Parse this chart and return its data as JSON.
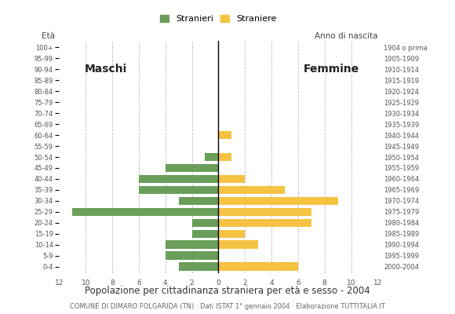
{
  "age_groups": [
    "0-4",
    "5-9",
    "10-14",
    "15-19",
    "20-24",
    "25-29",
    "30-34",
    "35-39",
    "40-44",
    "45-49",
    "50-54",
    "55-59",
    "60-64",
    "65-69",
    "70-74",
    "75-79",
    "80-84",
    "85-89",
    "90-94",
    "95-99",
    "100+"
  ],
  "birth_years": [
    "2000-2004",
    "1995-1999",
    "1990-1994",
    "1985-1989",
    "1980-1984",
    "1975-1979",
    "1970-1974",
    "1965-1969",
    "1960-1964",
    "1955-1959",
    "1950-1954",
    "1945-1949",
    "1940-1944",
    "1935-1939",
    "1930-1934",
    "1925-1929",
    "1920-1924",
    "1915-1919",
    "1910-1914",
    "1905-1909",
    "1904 o prima"
  ],
  "males": [
    3,
    4,
    4,
    2,
    2,
    11,
    3,
    6,
    6,
    4,
    1,
    0,
    0,
    0,
    0,
    0,
    0,
    0,
    0,
    0,
    0
  ],
  "females": [
    6,
    0,
    3,
    2,
    7,
    7,
    9,
    5,
    2,
    0,
    1,
    0,
    1,
    0,
    0,
    0,
    0,
    0,
    0,
    0,
    0
  ],
  "male_color": "#6a9e5a",
  "female_color": "#f5c242",
  "title": "Popolazione per cittadinanza straniera per età e sesso - 2004",
  "subtitle": "COMUNE DI DIMARO FOLGARIDA (TN) · Dati ISTAT 1° gennaio 2004 · Elaborazione TUTTITALIA.IT",
  "legend_male": "Stranieri",
  "legend_female": "Straniere",
  "xlim": 12,
  "ylabel_left": "Età",
  "ylabel_right": "Anno di nascita",
  "label_maschi": "Maschi",
  "label_femmine": "Femmine",
  "bg_color": "#ffffff",
  "grid_color": "#bbbbbb",
  "bar_height": 0.75
}
